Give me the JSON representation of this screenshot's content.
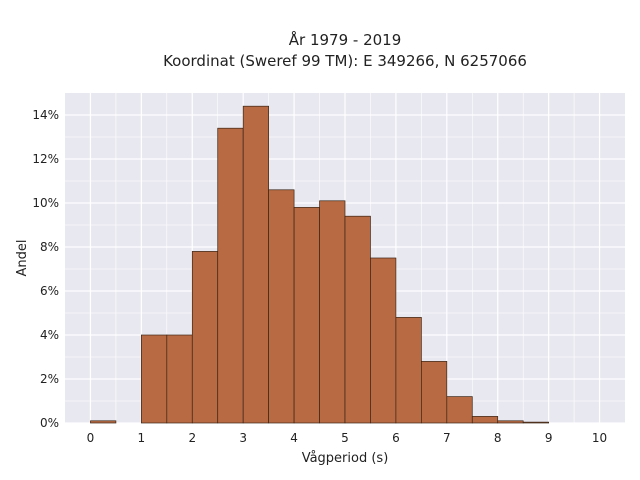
{
  "chart_data": {
    "type": "bar",
    "title_line1": "År 1979 - 2019",
    "title_line2": "Koordinat (Sweref 99 TM): E 349266, N 6257066",
    "xlabel": "Vågperiod (s)",
    "ylabel": "Andel",
    "xlim": [
      -0.5,
      10.5
    ],
    "ylim": [
      0,
      0.15
    ],
    "x_ticks": [
      0,
      1,
      2,
      3,
      4,
      5,
      6,
      7,
      8,
      9,
      10
    ],
    "x_tick_labels": [
      "0",
      "1",
      "2",
      "3",
      "4",
      "5",
      "6",
      "7",
      "8",
      "9",
      "10"
    ],
    "y_ticks": [
      0,
      0.02,
      0.04,
      0.06,
      0.08,
      0.1,
      0.12,
      0.14
    ],
    "y_tick_labels": [
      "0%",
      "2%",
      "4%",
      "6%",
      "8%",
      "10%",
      "12%",
      "14%"
    ],
    "bin_width": 0.5,
    "bin_starts": [
      0,
      0.5,
      1,
      1.5,
      2,
      2.5,
      3,
      3.5,
      4,
      4.5,
      5,
      5.5,
      6,
      6.5,
      7,
      7.5,
      8,
      8.5,
      9,
      9.5
    ],
    "values": [
      0.001,
      0,
      0.04,
      0.04,
      0.078,
      0.134,
      0.144,
      0.106,
      0.098,
      0.101,
      0.094,
      0.075,
      0.048,
      0.028,
      0.012,
      0.003,
      0.001,
      0.0004,
      0,
      0
    ],
    "grid": true,
    "bar_color": "#b86b43",
    "bar_edge_color": "#3a2416",
    "plot_background": "#e8e8f0",
    "grid_color": "#ffffff"
  }
}
